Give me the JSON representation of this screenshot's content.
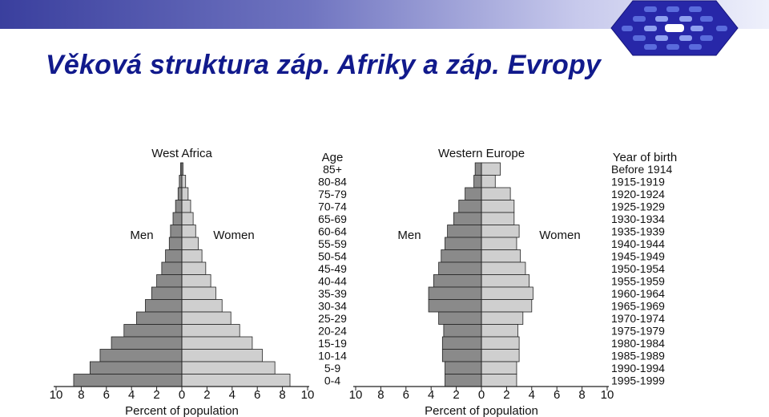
{
  "slide": {
    "title": "Věková struktura záp. Afriky a záp. Evropy",
    "colors": {
      "title": "#111a8c",
      "bar_men": "#8a8a8a",
      "bar_women": "#cfcfcf",
      "bar_stroke": "#222222"
    }
  },
  "chart_data": [
    {
      "type": "bar",
      "orientation": "horizontal",
      "subtype": "population-pyramid",
      "title": "West Africa",
      "xlabel": "Percent of population",
      "age_label": "Age",
      "men_label": "Men",
      "women_label": "Women",
      "xlim": [
        -10,
        10
      ],
      "xticks": [
        "10",
        "8",
        "6",
        "4",
        "2",
        "0",
        "2",
        "4",
        "6",
        "8",
        "10"
      ],
      "categories": [
        "85+",
        "80-84",
        "75-79",
        "70-74",
        "65-69",
        "60-64",
        "55-59",
        "50-54",
        "45-49",
        "40-44",
        "35-39",
        "30-34",
        "25-29",
        "20-24",
        "15-19",
        "10-14",
        "5-9",
        "0-4"
      ],
      "series": [
        {
          "name": "Men",
          "values": [
            0.1,
            0.2,
            0.3,
            0.5,
            0.7,
            0.9,
            1.0,
            1.3,
            1.6,
            2.0,
            2.4,
            2.9,
            3.6,
            4.6,
            5.6,
            6.5,
            7.3,
            8.6
          ]
        },
        {
          "name": "Women",
          "values": [
            0.1,
            0.3,
            0.5,
            0.7,
            0.9,
            1.1,
            1.3,
            1.6,
            1.9,
            2.3,
            2.7,
            3.2,
            3.9,
            4.6,
            5.6,
            6.4,
            7.4,
            8.6
          ]
        }
      ]
    },
    {
      "type": "bar",
      "orientation": "horizontal",
      "subtype": "population-pyramid",
      "title": "Western Europe",
      "xlabel": "Percent of population",
      "age_label": "Year of birth",
      "men_label": "Men",
      "women_label": "Women",
      "xlim": [
        -10,
        10
      ],
      "xticks": [
        "10",
        "8",
        "6",
        "4",
        "2",
        "0",
        "2",
        "4",
        "6",
        "8",
        "10"
      ],
      "categories": [
        "Before 1914",
        "1915-1919",
        "1920-1924",
        "1925-1929",
        "1930-1934",
        "1935-1939",
        "1940-1944",
        "1945-1949",
        "1950-1954",
        "1955-1959",
        "1960-1964",
        "1965-1969",
        "1970-1974",
        "1975-1979",
        "1980-1984",
        "1985-1989",
        "1990-1994",
        "1995-1999"
      ],
      "series": [
        {
          "name": "Men",
          "values": [
            0.5,
            0.6,
            1.3,
            1.8,
            2.2,
            2.7,
            2.9,
            3.2,
            3.4,
            3.8,
            4.2,
            4.2,
            3.4,
            3.0,
            3.1,
            3.1,
            2.9,
            2.9
          ]
        },
        {
          "name": "Women",
          "values": [
            1.5,
            1.1,
            2.3,
            2.6,
            2.6,
            3.0,
            2.8,
            3.1,
            3.5,
            3.8,
            4.1,
            4.0,
            3.3,
            2.9,
            3.0,
            3.0,
            2.8,
            2.8
          ]
        }
      ]
    }
  ]
}
